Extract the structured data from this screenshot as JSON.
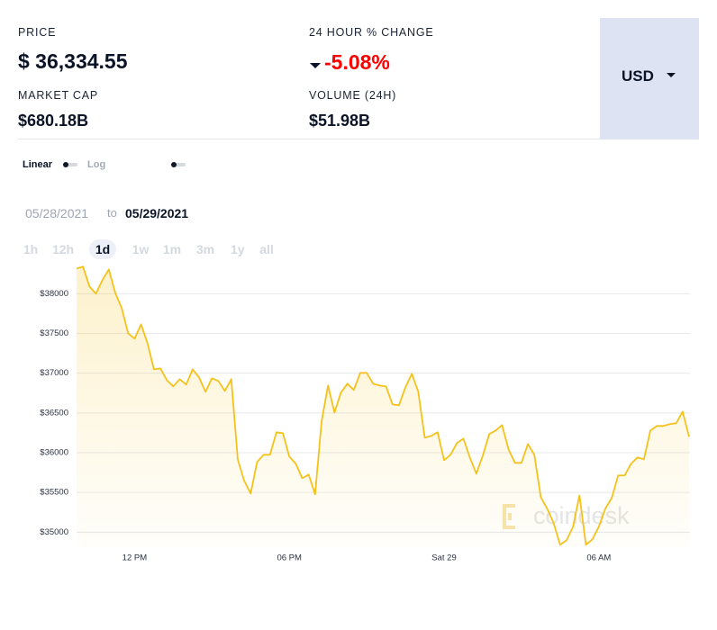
{
  "header": {
    "price_label": "PRICE",
    "price": "$ 36,334.55",
    "change_label": "24 HOUR % CHANGE",
    "change": "-5.08%",
    "market_cap_label": "MARKET CAP",
    "market_cap": "$680.18B",
    "volume_label": "VOLUME (24H)",
    "volume": "$51.98B",
    "currency": "USD"
  },
  "controls": {
    "scale_options": [
      "Linear",
      "Log"
    ],
    "date_from": "05/28/2021",
    "date_separator": "to",
    "date_to": "05/29/2021",
    "ranges": [
      "1h",
      "12h",
      "1d",
      "1w",
      "1m",
      "3m",
      "1y",
      "all"
    ],
    "active_range": "1d"
  },
  "chart_data": {
    "type": "line",
    "watermark": "coindesk",
    "categories": [
      null,
      null,
      null,
      null,
      null,
      null,
      null,
      null,
      null,
      "12 PM",
      null,
      null,
      null,
      null,
      null,
      null,
      null,
      null,
      null,
      null,
      null,
      null,
      null,
      null,
      null,
      null,
      null,
      null,
      null,
      null,
      null,
      null,
      null,
      "06 PM",
      null,
      null,
      null,
      null,
      null,
      null,
      null,
      null,
      null,
      null,
      null,
      null,
      null,
      null,
      null,
      null,
      null,
      null,
      null,
      null,
      null,
      null,
      null,
      "Sat 29",
      null,
      null,
      null,
      null,
      null,
      null,
      null,
      null,
      null,
      null,
      null,
      null,
      null,
      null,
      null,
      null,
      null,
      null,
      null,
      null,
      null,
      null,
      null,
      "06 AM",
      null,
      null,
      null,
      null,
      null,
      null,
      null,
      null,
      null,
      null,
      null,
      null,
      null,
      null
    ],
    "series": [
      {
        "color": "#f5c21b",
        "values": [
          38317,
          38340,
          38091,
          38000,
          38170,
          38306,
          38011,
          37819,
          37502,
          37434,
          37615,
          37377,
          37049,
          37060,
          36913,
          36834,
          36925,
          36857,
          37049,
          36947,
          36766,
          36936,
          36902,
          36777,
          36925,
          35917,
          35646,
          35487,
          35883,
          35974,
          35974,
          36257,
          36245,
          35951,
          35861,
          35679,
          35725,
          35476,
          36393,
          36845,
          36506,
          36755,
          36868,
          36789,
          37004,
          37004,
          36868,
          36845,
          36834,
          36608,
          36596,
          36823,
          36993,
          36766,
          36189,
          36211,
          36257,
          35906,
          35974,
          36121,
          36177,
          35940,
          35736,
          35962,
          36234,
          36279,
          36347,
          36041,
          35872,
          35872,
          36110,
          35974,
          35442,
          35295,
          35113,
          34842,
          34898,
          35068,
          35464,
          34842,
          34910,
          35068,
          35295,
          35430,
          35714,
          35714,
          35861,
          35940,
          35917,
          36279,
          36336,
          36336,
          36359,
          36370,
          36517,
          36200
        ]
      }
    ],
    "ylim": [
      34800,
      38400
    ],
    "yticks": [
      {
        "value": 35000,
        "label": "$35000"
      },
      {
        "value": 35500,
        "label": "$35500"
      },
      {
        "value": 36000,
        "label": "$36000"
      },
      {
        "value": 36500,
        "label": "$36500"
      },
      {
        "value": 37000,
        "label": "$37000"
      },
      {
        "value": 37500,
        "label": "$37500"
      },
      {
        "value": 38000,
        "label": "$38000"
      }
    ],
    "grid": true
  }
}
